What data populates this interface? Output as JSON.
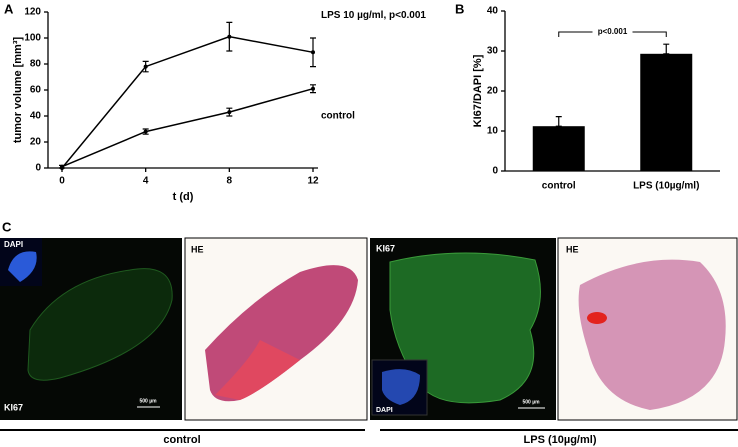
{
  "chart_data": [
    {
      "type": "line",
      "panel": "A",
      "ylabel": "tumor volume [mm³]",
      "xlabel": "t (d)",
      "x": [
        0,
        4,
        8,
        12
      ],
      "xlim": [
        0,
        12
      ],
      "xticks": [
        0,
        4,
        8,
        12
      ],
      "ylim": [
        0,
        120
      ],
      "yticks": [
        0,
        20,
        40,
        60,
        80,
        100,
        120
      ],
      "series": [
        {
          "name": "LPS 10 µg/ml, p<0.001",
          "color": "#000000",
          "values": [
            0,
            78,
            101,
            89
          ],
          "errors": [
            0,
            4,
            11,
            11
          ]
        },
        {
          "name": "control",
          "color": "#000000",
          "values": [
            1,
            28,
            43,
            61
          ],
          "errors": [
            1,
            2,
            3,
            3
          ]
        }
      ]
    },
    {
      "type": "bar",
      "panel": "B",
      "ylabel": "KI67/DAPI [%]",
      "categories": [
        "control",
        "LPS (10µg/ml)"
      ],
      "values": [
        11.2,
        29.3
      ],
      "errors": [
        2.4,
        2.4
      ],
      "color": "#000000",
      "ylim": [
        0,
        40
      ],
      "yticks": [
        0,
        10,
        20,
        30,
        40
      ],
      "annotation": "p<0.001"
    }
  ],
  "panel_c": {
    "label": "C",
    "images": [
      {
        "top": "DAPI",
        "bottom": "KI67",
        "scale": "500 µm"
      },
      {
        "top": "HE"
      },
      {
        "top": "KI67",
        "bottom": "DAPI",
        "scale": "500 µm"
      },
      {
        "top": "HE"
      }
    ],
    "groups": [
      "control",
      "LPS (10µg/ml)"
    ]
  }
}
